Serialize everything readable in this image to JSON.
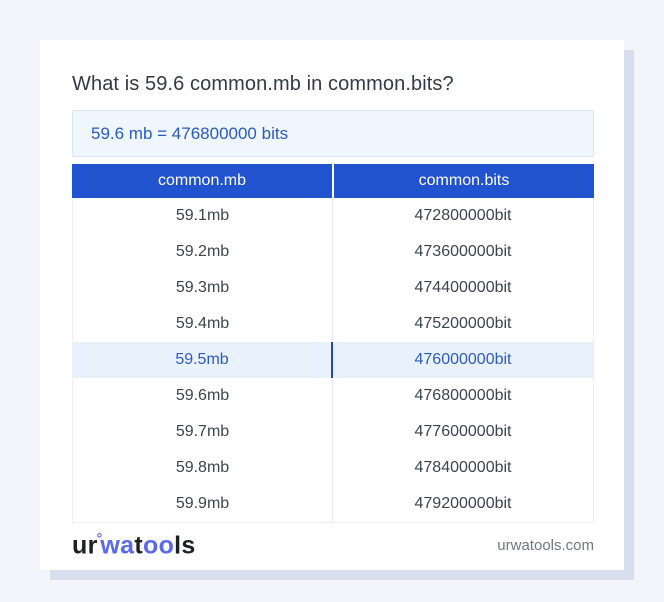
{
  "title": "What is 59.6 common.mb in common.bits?",
  "answer": {
    "text": "59.6 mb = 476800000 bits"
  },
  "table": {
    "headers": [
      "common.mb",
      "common.bits"
    ],
    "rows": [
      {
        "mb": "59.1mb",
        "bits": "472800000bit",
        "highlighted": false
      },
      {
        "mb": "59.2mb",
        "bits": "473600000bit",
        "highlighted": false
      },
      {
        "mb": "59.3mb",
        "bits": "474400000bit",
        "highlighted": false
      },
      {
        "mb": "59.4mb",
        "bits": "475200000bit",
        "highlighted": false
      },
      {
        "mb": "59.5mb",
        "bits": "476000000bit",
        "highlighted": true
      },
      {
        "mb": "59.6mb",
        "bits": "476800000bit",
        "highlighted": false
      },
      {
        "mb": "59.7mb",
        "bits": "477600000bit",
        "highlighted": false
      },
      {
        "mb": "59.8mb",
        "bits": "478400000bit",
        "highlighted": false
      },
      {
        "mb": "59.9mb",
        "bits": "479200000bit",
        "highlighted": false
      }
    ]
  },
  "footer": {
    "logo": {
      "ur": "ur",
      "ring": "°",
      "wa": "wa",
      "t": "t",
      "oo": "oo",
      "ls": "ls"
    },
    "domain": "urwatools.com"
  },
  "colors": {
    "page_bg": "#f3f5fa",
    "card_shadow": "#d9deee",
    "header_bg": "#2053cd",
    "answer_bg": "#eff6fd",
    "answer_text": "#2a5ac5",
    "highlight_bg": "#e9f1fc",
    "highlight_text": "#2e5bbf",
    "logo_blue": "#5a68ee",
    "row_text": "#3d444f"
  }
}
